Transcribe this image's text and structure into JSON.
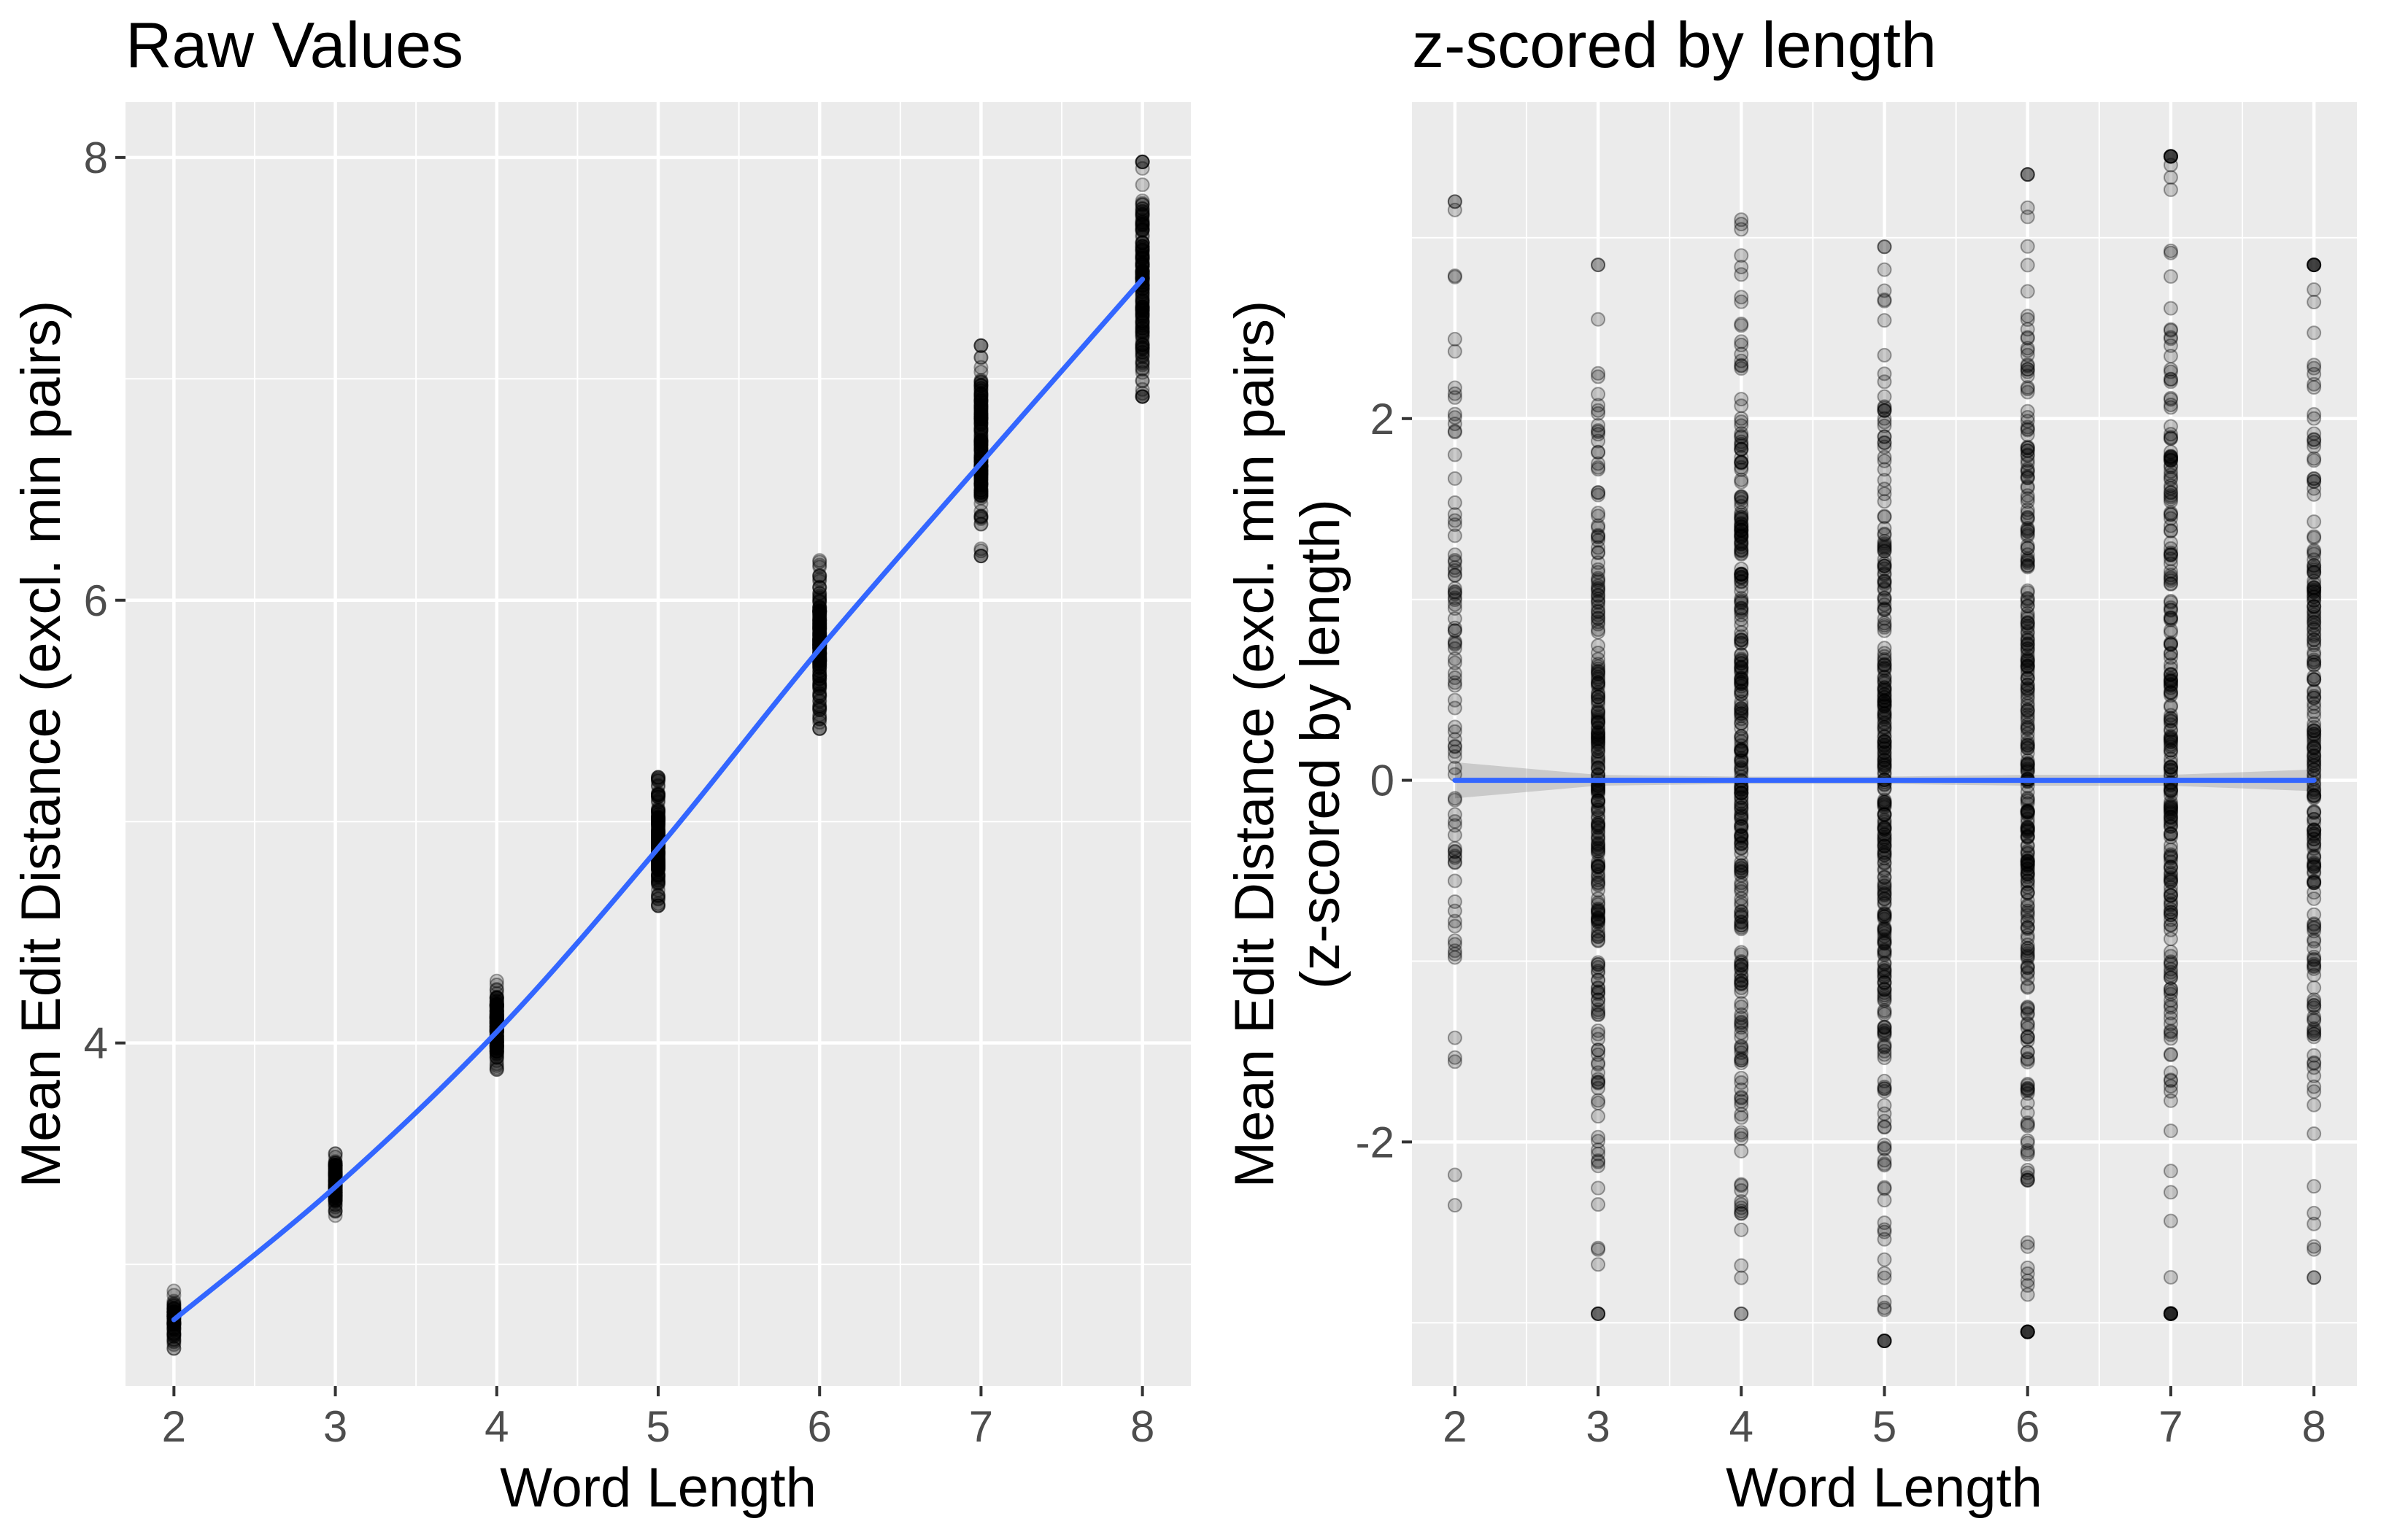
{
  "panels": [
    {
      "title": "Raw Values",
      "xlabel": "Word Length",
      "ylabel_lines": [
        "Mean Edit Distance (excl. min pairs)"
      ]
    },
    {
      "title": "z-scored by length",
      "xlabel": "Word Length",
      "ylabel_lines": [
        "Mean Edit Distance (excl. min pairs)",
        "(z-scored by length)"
      ]
    }
  ],
  "colors": {
    "panel_bg": "#ebebeb",
    "grid_major": "#ffffff",
    "points": "#000000",
    "smooth_line": "#3366ff",
    "ribbon": "#999999",
    "tick_text": "#4d4d4d"
  },
  "chart_data": [
    {
      "type": "scatter",
      "title": "Raw Values",
      "xlabel": "Word Length",
      "ylabel": "Mean Edit Distance (excl. min pairs)",
      "xlim": [
        1.7,
        8.3
      ],
      "ylim": [
        2.45,
        8.25
      ],
      "x_ticks": [
        2,
        3,
        4,
        5,
        6,
        7,
        8
      ],
      "y_ticks": [
        4,
        6,
        8
      ],
      "grid": true,
      "point_alpha": 0.2,
      "point_groups": [
        {
          "x": 2,
          "y_min": 2.62,
          "y_max": 2.88,
          "count": 70
        },
        {
          "x": 3,
          "y_min": 3.22,
          "y_max": 3.5,
          "count": 120
        },
        {
          "x": 4,
          "y_min": 3.88,
          "y_max": 4.28,
          "count": 180
        },
        {
          "x": 5,
          "y_min": 4.62,
          "y_max": 5.2,
          "count": 180
        },
        {
          "x": 6,
          "y_min": 5.42,
          "y_max": 6.18,
          "count": 180
        },
        {
          "x": 7,
          "y_min": 6.2,
          "y_max": 7.15,
          "count": 180
        },
        {
          "x": 8,
          "y_min": 6.92,
          "y_max": 7.98,
          "count": 180
        }
      ],
      "smooth": {
        "x": [
          2,
          3,
          4,
          5,
          6,
          7,
          8
        ],
        "y": [
          2.75,
          3.35,
          4.05,
          4.88,
          5.78,
          6.62,
          7.45
        ]
      }
    },
    {
      "type": "scatter",
      "title": "z-scored by length",
      "xlabel": "Word Length",
      "ylabel": "Mean Edit Distance (excl. min pairs) (z-scored by length)",
      "xlim": [
        1.7,
        8.3
      ],
      "ylim": [
        -3.35,
        3.75
      ],
      "x_ticks": [
        2,
        3,
        4,
        5,
        6,
        7,
        8
      ],
      "y_ticks": [
        -2,
        0,
        2
      ],
      "grid": true,
      "point_alpha": 0.2,
      "point_groups": [
        {
          "x": 2,
          "y_min": -2.35,
          "y_max": 3.2,
          "count": 90
        },
        {
          "x": 3,
          "y_min": -2.95,
          "y_max": 2.85,
          "count": 260
        },
        {
          "x": 4,
          "y_min": -2.95,
          "y_max": 3.1,
          "count": 300
        },
        {
          "x": 5,
          "y_min": -3.1,
          "y_max": 2.95,
          "count": 300
        },
        {
          "x": 6,
          "y_min": -3.05,
          "y_max": 3.35,
          "count": 300
        },
        {
          "x": 7,
          "y_min": -2.95,
          "y_max": 3.45,
          "count": 260
        },
        {
          "x": 8,
          "y_min": -2.75,
          "y_max": 2.85,
          "count": 220
        }
      ],
      "smooth": {
        "x": [
          2,
          3,
          4,
          5,
          6,
          7,
          8
        ],
        "y": [
          0,
          0,
          0,
          0,
          0,
          0,
          0
        ],
        "ribbon_halfwidth": [
          0.1,
          0.03,
          0.02,
          0.02,
          0.03,
          0.03,
          0.06
        ]
      }
    }
  ]
}
